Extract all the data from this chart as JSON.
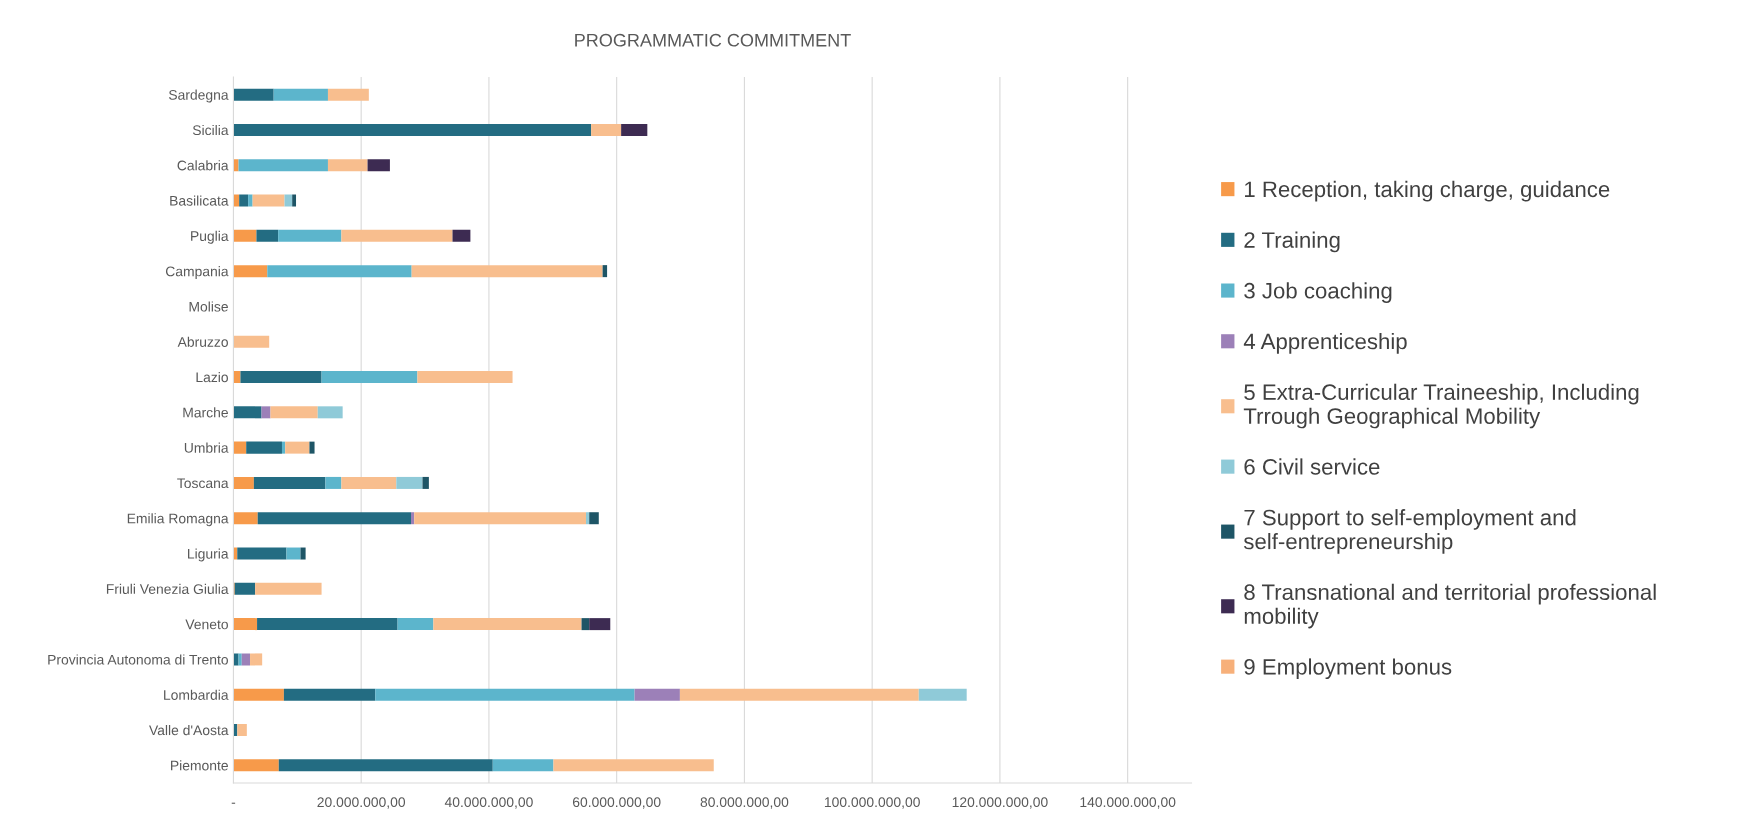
{
  "chart_data": {
    "type": "bar",
    "orientation": "horizontal",
    "stacked": true,
    "title": "PROGRAMMATIC COMMITMENT",
    "categories": [
      "Sardegna",
      "Sicilia",
      "Calabria",
      "Basilicata",
      "Puglia",
      "Campania",
      "Molise",
      "Abruzzo",
      "Lazio",
      "Marche",
      "Umbria",
      "Toscana",
      "Emilia Romagna",
      "Liguria",
      "Friuli Venezia Giulia",
      "Veneto",
      "Provincia Autonoma di Trento",
      "Lombardia",
      "Valle d'Aosta",
      "Piemonte"
    ],
    "series": [
      {
        "name": "1 Reception, taking charge, guidance",
        "color": "#f79a4a",
        "values": [
          0,
          0,
          800000,
          900000,
          3600000,
          5300000,
          0,
          0,
          1100000,
          0,
          2000000,
          3200000,
          3800000,
          600000,
          200000,
          3700000,
          0,
          7900000,
          0,
          7100000
        ]
      },
      {
        "name": "2 Training",
        "color": "#236c82",
        "values": [
          6300000,
          56000000,
          0,
          1400000,
          3400000,
          0,
          0,
          0,
          12700000,
          4400000,
          5600000,
          11200000,
          24000000,
          7700000,
          3200000,
          22000000,
          800000,
          14300000,
          600000,
          33500000
        ]
      },
      {
        "name": "3 Job coaching",
        "color": "#5cb5cc",
        "values": [
          8500000,
          0,
          14000000,
          700000,
          9900000,
          22600000,
          0,
          0,
          15000000,
          0,
          500000,
          2500000,
          0,
          2200000,
          0,
          5600000,
          500000,
          40600000,
          0,
          9500000
        ]
      },
      {
        "name": "4 Apprenticeship",
        "color": "#9c80b8",
        "values": [
          0,
          0,
          0,
          0,
          0,
          0,
          0,
          0,
          0,
          1400000,
          0,
          0,
          500000,
          0,
          0,
          0,
          1300000,
          7100000,
          0,
          0
        ]
      },
      {
        "name": "5 Extra-Curricular Traineeship, Including Trrough Geographical Mobility",
        "color": "#f8be8e",
        "values": [
          6400000,
          4700000,
          6200000,
          5000000,
          17400000,
          29900000,
          0,
          5600000,
          14900000,
          7400000,
          3800000,
          8600000,
          26900000,
          0,
          10400000,
          23200000,
          1900000,
          37400000,
          1500000,
          25100000
        ]
      },
      {
        "name": "6 Civil service",
        "color": "#8fcad8",
        "values": [
          0,
          0,
          0,
          1200000,
          0,
          0,
          0,
          0,
          0,
          3900000,
          0,
          4100000,
          500000,
          0,
          0,
          0,
          0,
          7500000,
          0,
          0
        ]
      },
      {
        "name": "7 Support to self-employment and self-entrepreneurship",
        "color": "#1e5566",
        "values": [
          0,
          0,
          0,
          600000,
          0,
          700000,
          0,
          0,
          0,
          0,
          800000,
          1000000,
          1500000,
          800000,
          0,
          1200000,
          0,
          0,
          0,
          0
        ]
      },
      {
        "name": "8 Transnational and territorial professional mobility",
        "color": "#3d2b52",
        "values": [
          0,
          4100000,
          3500000,
          0,
          2800000,
          0,
          0,
          0,
          0,
          0,
          0,
          0,
          0,
          0,
          0,
          3300000,
          0,
          0,
          0,
          0
        ]
      },
      {
        "name": "9 Employment bonus",
        "color": "#f7b07a",
        "values": [
          0,
          0,
          0,
          0,
          0,
          0,
          0,
          0,
          0,
          0,
          0,
          0,
          0,
          0,
          0,
          0,
          0,
          0,
          0,
          0
        ]
      }
    ],
    "xlim": [
      0,
      150000000
    ],
    "xticks": [
      {
        "value": 0,
        "label": "-"
      },
      {
        "value": 20000000,
        "label": "20.000.000,00"
      },
      {
        "value": 40000000,
        "label": "40.000.000,00"
      },
      {
        "value": 60000000,
        "label": "60.000.000,00"
      },
      {
        "value": 80000000,
        "label": "80.000.000,00"
      },
      {
        "value": 100000000,
        "label": "100.000.000,00"
      },
      {
        "value": 120000000,
        "label": "120.000.000,00"
      },
      {
        "value": 140000000,
        "label": "140.000.000,00"
      }
    ],
    "grid": "x",
    "legend": "right"
  }
}
